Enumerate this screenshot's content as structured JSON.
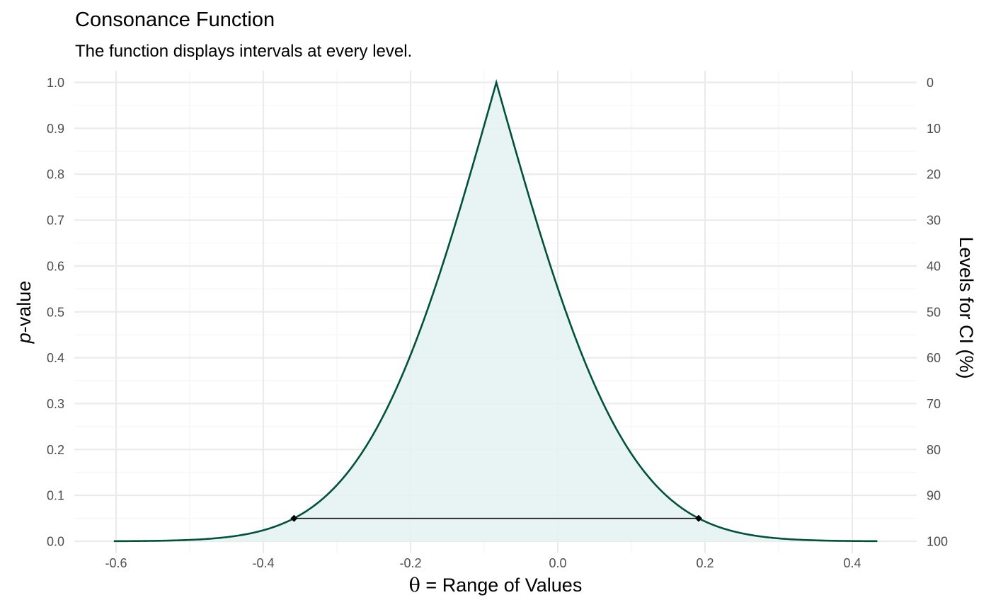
{
  "chart_data": {
    "type": "area",
    "title": "Consonance Function",
    "subtitle": "The function displays intervals at every level.",
    "xlabel": {
      "symbol": "θ",
      "text": " =  Range of Values"
    },
    "ylabel": {
      "italic": "p",
      "text": "-value"
    },
    "y2label": "Levels for CI (%)",
    "xlim": [
      -0.63,
      0.47
    ],
    "ylim": [
      0,
      1
    ],
    "x_ticks": [
      -0.6,
      -0.4,
      -0.2,
      0.0,
      0.2,
      0.4
    ],
    "x_tick_labels": [
      "-0.6",
      "-0.4",
      "-0.2",
      "0.0",
      "0.2",
      "0.4"
    ],
    "y_ticks": [
      0,
      0.1,
      0.2,
      0.3,
      0.4,
      0.5,
      0.6,
      0.7,
      0.8,
      0.9,
      1.0
    ],
    "y_tick_labels": [
      "0.0",
      "0.1",
      "0.2",
      "0.3",
      "0.4",
      "0.5",
      "0.6",
      "0.7",
      "0.8",
      "0.9",
      "1.0"
    ],
    "y2_tick_labels": [
      "100",
      "90",
      "80",
      "70",
      "60",
      "50",
      "40",
      "30",
      "20",
      "10",
      "0"
    ],
    "grid": true,
    "x_range": [
      -0.603,
      0.434
    ],
    "curve": {
      "peak": -0.0835,
      "sd_left": 0.1402,
      "sd_right": 0.1402
    },
    "interval": {
      "level_pct": 95,
      "p_value": 0.05,
      "lower": -0.3583,
      "upper": 0.1913
    },
    "colors": {
      "line": "#00523a",
      "fill": "#e6f3f2",
      "interval": "#000000",
      "grid_major": "#ebebeb",
      "grid_minor": "#f5f5f5",
      "tick_text": "#4d4d4d"
    }
  }
}
